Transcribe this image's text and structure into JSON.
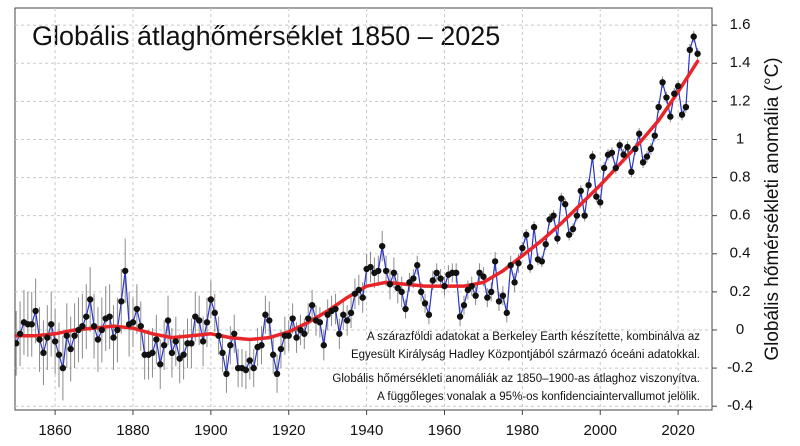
{
  "chart_data": {
    "type": "line",
    "title": "Globális átlaghőmérséklet 1850 – 2025",
    "y_label": "Globális hőmérsékleti anomália (°C)",
    "annotations": [
      "A szárazföldi adatokat a Berkeley Earth készítette, kombinálva az",
      "Egyesült Királyság Hadley Központjából származó óceáni adatokkal.",
      "Globális hőmérsékleti anomáliák az 1850–1900-as átlaghoz viszonyítva.",
      "A függőleges vonalak a 95%-os konfidenciaintervallumot jelölik."
    ],
    "x": [
      1850,
      1851,
      1852,
      1853,
      1854,
      1855,
      1856,
      1857,
      1858,
      1859,
      1860,
      1861,
      1862,
      1863,
      1864,
      1865,
      1866,
      1867,
      1868,
      1869,
      1870,
      1871,
      1872,
      1873,
      1874,
      1875,
      1876,
      1877,
      1878,
      1879,
      1880,
      1881,
      1882,
      1883,
      1884,
      1885,
      1886,
      1887,
      1888,
      1889,
      1890,
      1891,
      1892,
      1893,
      1894,
      1895,
      1896,
      1897,
      1898,
      1899,
      1900,
      1901,
      1902,
      1903,
      1904,
      1905,
      1906,
      1907,
      1908,
      1909,
      1910,
      1911,
      1912,
      1913,
      1914,
      1915,
      1916,
      1917,
      1918,
      1919,
      1920,
      1921,
      1922,
      1923,
      1924,
      1925,
      1926,
      1927,
      1928,
      1929,
      1930,
      1931,
      1932,
      1933,
      1934,
      1935,
      1936,
      1937,
      1938,
      1939,
      1940,
      1941,
      1942,
      1943,
      1944,
      1945,
      1946,
      1947,
      1948,
      1949,
      1950,
      1951,
      1952,
      1953,
      1954,
      1955,
      1956,
      1957,
      1958,
      1959,
      1960,
      1961,
      1962,
      1963,
      1964,
      1965,
      1966,
      1967,
      1968,
      1969,
      1970,
      1971,
      1972,
      1973,
      1974,
      1975,
      1976,
      1977,
      1978,
      1979,
      1980,
      1981,
      1982,
      1983,
      1984,
      1985,
      1986,
      1987,
      1988,
      1989,
      1990,
      1991,
      1992,
      1993,
      1994,
      1995,
      1996,
      1997,
      1998,
      1999,
      2000,
      2001,
      2002,
      2003,
      2004,
      2005,
      2006,
      2007,
      2008,
      2009,
      2010,
      2011,
      2012,
      2013,
      2014,
      2015,
      2016,
      2017,
      2018,
      2019,
      2020,
      2021,
      2022,
      2023,
      2024,
      2025
    ],
    "series": [
      {
        "color": "#2a35c8",
        "marker_color": "#111111",
        "error_color": "#8a8a8a",
        "values": [
          -0.07,
          -0.02,
          0.04,
          0.03,
          0.03,
          0.1,
          -0.05,
          -0.12,
          -0.04,
          0.03,
          -0.06,
          -0.13,
          -0.2,
          -0.03,
          -0.1,
          -0.03,
          0.0,
          0.02,
          0.07,
          0.16,
          0.02,
          -0.05,
          0.0,
          0.06,
          0.07,
          -0.04,
          0.0,
          0.15,
          0.31,
          0.03,
          0.04,
          0.11,
          0.02,
          -0.13,
          -0.13,
          -0.12,
          -0.05,
          -0.18,
          -0.08,
          0.05,
          -0.12,
          -0.06,
          -0.15,
          -0.13,
          -0.07,
          -0.07,
          0.07,
          0.05,
          -0.06,
          0.04,
          0.16,
          0.09,
          -0.03,
          -0.12,
          -0.23,
          -0.08,
          -0.02,
          -0.2,
          -0.2,
          -0.21,
          -0.16,
          -0.2,
          -0.09,
          -0.08,
          0.08,
          0.05,
          -0.13,
          -0.23,
          -0.1,
          -0.03,
          -0.03,
          0.06,
          -0.04,
          0.0,
          -0.02,
          0.06,
          0.13,
          0.05,
          0.04,
          -0.08,
          0.08,
          0.1,
          0.11,
          -0.02,
          0.08,
          0.05,
          0.09,
          0.19,
          0.21,
          0.17,
          0.32,
          0.33,
          0.3,
          0.31,
          0.44,
          0.31,
          0.24,
          0.3,
          0.22,
          0.2,
          0.11,
          0.25,
          0.27,
          0.34,
          0.2,
          0.14,
          0.08,
          0.26,
          0.3,
          0.27,
          0.23,
          0.29,
          0.3,
          0.3,
          0.07,
          0.13,
          0.21,
          0.23,
          0.18,
          0.3,
          0.28,
          0.17,
          0.2,
          0.36,
          0.15,
          0.18,
          0.09,
          0.34,
          0.25,
          0.35,
          0.43,
          0.5,
          0.33,
          0.54,
          0.37,
          0.36,
          0.45,
          0.58,
          0.6,
          0.48,
          0.69,
          0.66,
          0.5,
          0.53,
          0.6,
          0.73,
          0.6,
          0.76,
          0.91,
          0.7,
          0.67,
          0.85,
          0.92,
          0.93,
          0.85,
          0.97,
          0.92,
          0.96,
          0.83,
          0.95,
          1.03,
          0.88,
          0.91,
          0.95,
          1.02,
          1.17,
          1.3,
          1.22,
          1.12,
          1.24,
          1.28,
          1.13,
          1.17,
          1.47,
          1.54,
          1.45
        ],
        "errors": [
          0.17,
          0.17,
          0.17,
          0.17,
          0.17,
          0.17,
          0.17,
          0.17,
          0.17,
          0.17,
          0.17,
          0.17,
          0.17,
          0.17,
          0.17,
          0.17,
          0.17,
          0.17,
          0.17,
          0.17,
          0.17,
          0.17,
          0.17,
          0.17,
          0.17,
          0.17,
          0.17,
          0.17,
          0.17,
          0.17,
          0.13,
          0.13,
          0.13,
          0.13,
          0.13,
          0.13,
          0.13,
          0.13,
          0.13,
          0.13,
          0.13,
          0.13,
          0.13,
          0.13,
          0.13,
          0.13,
          0.13,
          0.13,
          0.13,
          0.13,
          0.1,
          0.1,
          0.1,
          0.1,
          0.1,
          0.1,
          0.1,
          0.1,
          0.1,
          0.1,
          0.1,
          0.1,
          0.1,
          0.1,
          0.1,
          0.1,
          0.1,
          0.1,
          0.1,
          0.1,
          0.08,
          0.08,
          0.08,
          0.08,
          0.08,
          0.08,
          0.08,
          0.08,
          0.08,
          0.08,
          0.08,
          0.08,
          0.08,
          0.08,
          0.08,
          0.08,
          0.08,
          0.08,
          0.08,
          0.08,
          0.08,
          0.08,
          0.08,
          0.08,
          0.08,
          0.08,
          0.08,
          0.08,
          0.08,
          0.08,
          0.05,
          0.05,
          0.05,
          0.05,
          0.05,
          0.05,
          0.05,
          0.05,
          0.05,
          0.05,
          0.05,
          0.05,
          0.05,
          0.05,
          0.05,
          0.05,
          0.05,
          0.05,
          0.05,
          0.05,
          0.05,
          0.05,
          0.05,
          0.05,
          0.05,
          0.05,
          0.05,
          0.05,
          0.05,
          0.05,
          0.03,
          0.03,
          0.03,
          0.03,
          0.03,
          0.03,
          0.03,
          0.03,
          0.03,
          0.03,
          0.03,
          0.03,
          0.03,
          0.03,
          0.03,
          0.03,
          0.03,
          0.03,
          0.03,
          0.03,
          0.03,
          0.03,
          0.03,
          0.03,
          0.03,
          0.03,
          0.03,
          0.03,
          0.03,
          0.03,
          0.03,
          0.03,
          0.03,
          0.03,
          0.03,
          0.03,
          0.03,
          0.03,
          0.03,
          0.03,
          0.03,
          0.03,
          0.03,
          0.03,
          0.03,
          0.03
        ]
      }
    ],
    "smooth": {
      "color": "#e8262a",
      "x": [
        1850,
        1855,
        1860,
        1865,
        1870,
        1875,
        1880,
        1885,
        1890,
        1895,
        1900,
        1905,
        1910,
        1915,
        1920,
        1925,
        1930,
        1935,
        1940,
        1945,
        1950,
        1955,
        1960,
        1965,
        1970,
        1975,
        1980,
        1985,
        1990,
        1995,
        2000,
        2005,
        2010,
        2015,
        2020,
        2025
      ],
      "values": [
        -0.03,
        -0.03,
        -0.02,
        0.0,
        0.01,
        0.02,
        0.01,
        -0.02,
        -0.04,
        -0.03,
        -0.02,
        -0.04,
        -0.05,
        -0.04,
        -0.01,
        0.04,
        0.1,
        0.17,
        0.23,
        0.25,
        0.24,
        0.23,
        0.23,
        0.23,
        0.25,
        0.31,
        0.39,
        0.47,
        0.56,
        0.66,
        0.76,
        0.87,
        0.98,
        1.1,
        1.25,
        1.41
      ]
    },
    "xlim": [
      1849.7,
      2028.7
    ],
    "ylim": [
      -0.42,
      1.69
    ],
    "xticks": [
      1860,
      1880,
      1900,
      1920,
      1940,
      1960,
      1980,
      2000,
      2020
    ],
    "yticks": [
      -0.4,
      -0.2,
      0,
      0.2,
      0.4,
      0.6,
      0.8,
      1,
      1.2,
      1.4,
      1.6
    ],
    "grid": true
  }
}
